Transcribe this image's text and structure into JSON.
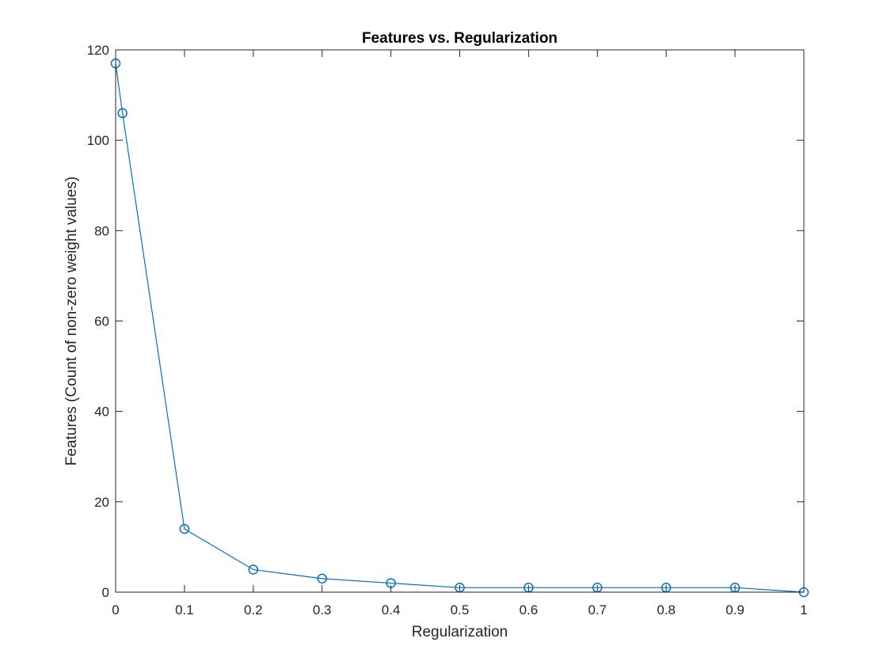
{
  "chart_data": {
    "type": "line",
    "title": "Features vs. Regularization",
    "xlabel": "Regularization",
    "ylabel": "Features (Count of non-zero weight values)",
    "xlim": [
      0,
      1
    ],
    "ylim": [
      0,
      120
    ],
    "xticks": [
      0,
      0.1,
      0.2,
      0.3,
      0.4,
      0.5,
      0.6,
      0.7,
      0.8,
      0.9,
      1
    ],
    "xtick_labels": [
      "0",
      "0.1",
      "0.2",
      "0.3",
      "0.4",
      "0.5",
      "0.6",
      "0.7",
      "0.8",
      "0.9",
      "1"
    ],
    "yticks": [
      0,
      20,
      40,
      60,
      80,
      100,
      120
    ],
    "ytick_labels": [
      "0",
      "20",
      "40",
      "60",
      "80",
      "100",
      "120"
    ],
    "grid": false,
    "marker": "circle",
    "series": [
      {
        "color": "#0072BD",
        "x": [
          0,
          0.01,
          0.1,
          0.2,
          0.3,
          0.4,
          0.5,
          0.6,
          0.7,
          0.8,
          0.9,
          1
        ],
        "y": [
          117,
          106,
          14,
          5,
          3,
          2,
          1,
          1,
          1,
          1,
          1,
          0
        ]
      }
    ]
  }
}
